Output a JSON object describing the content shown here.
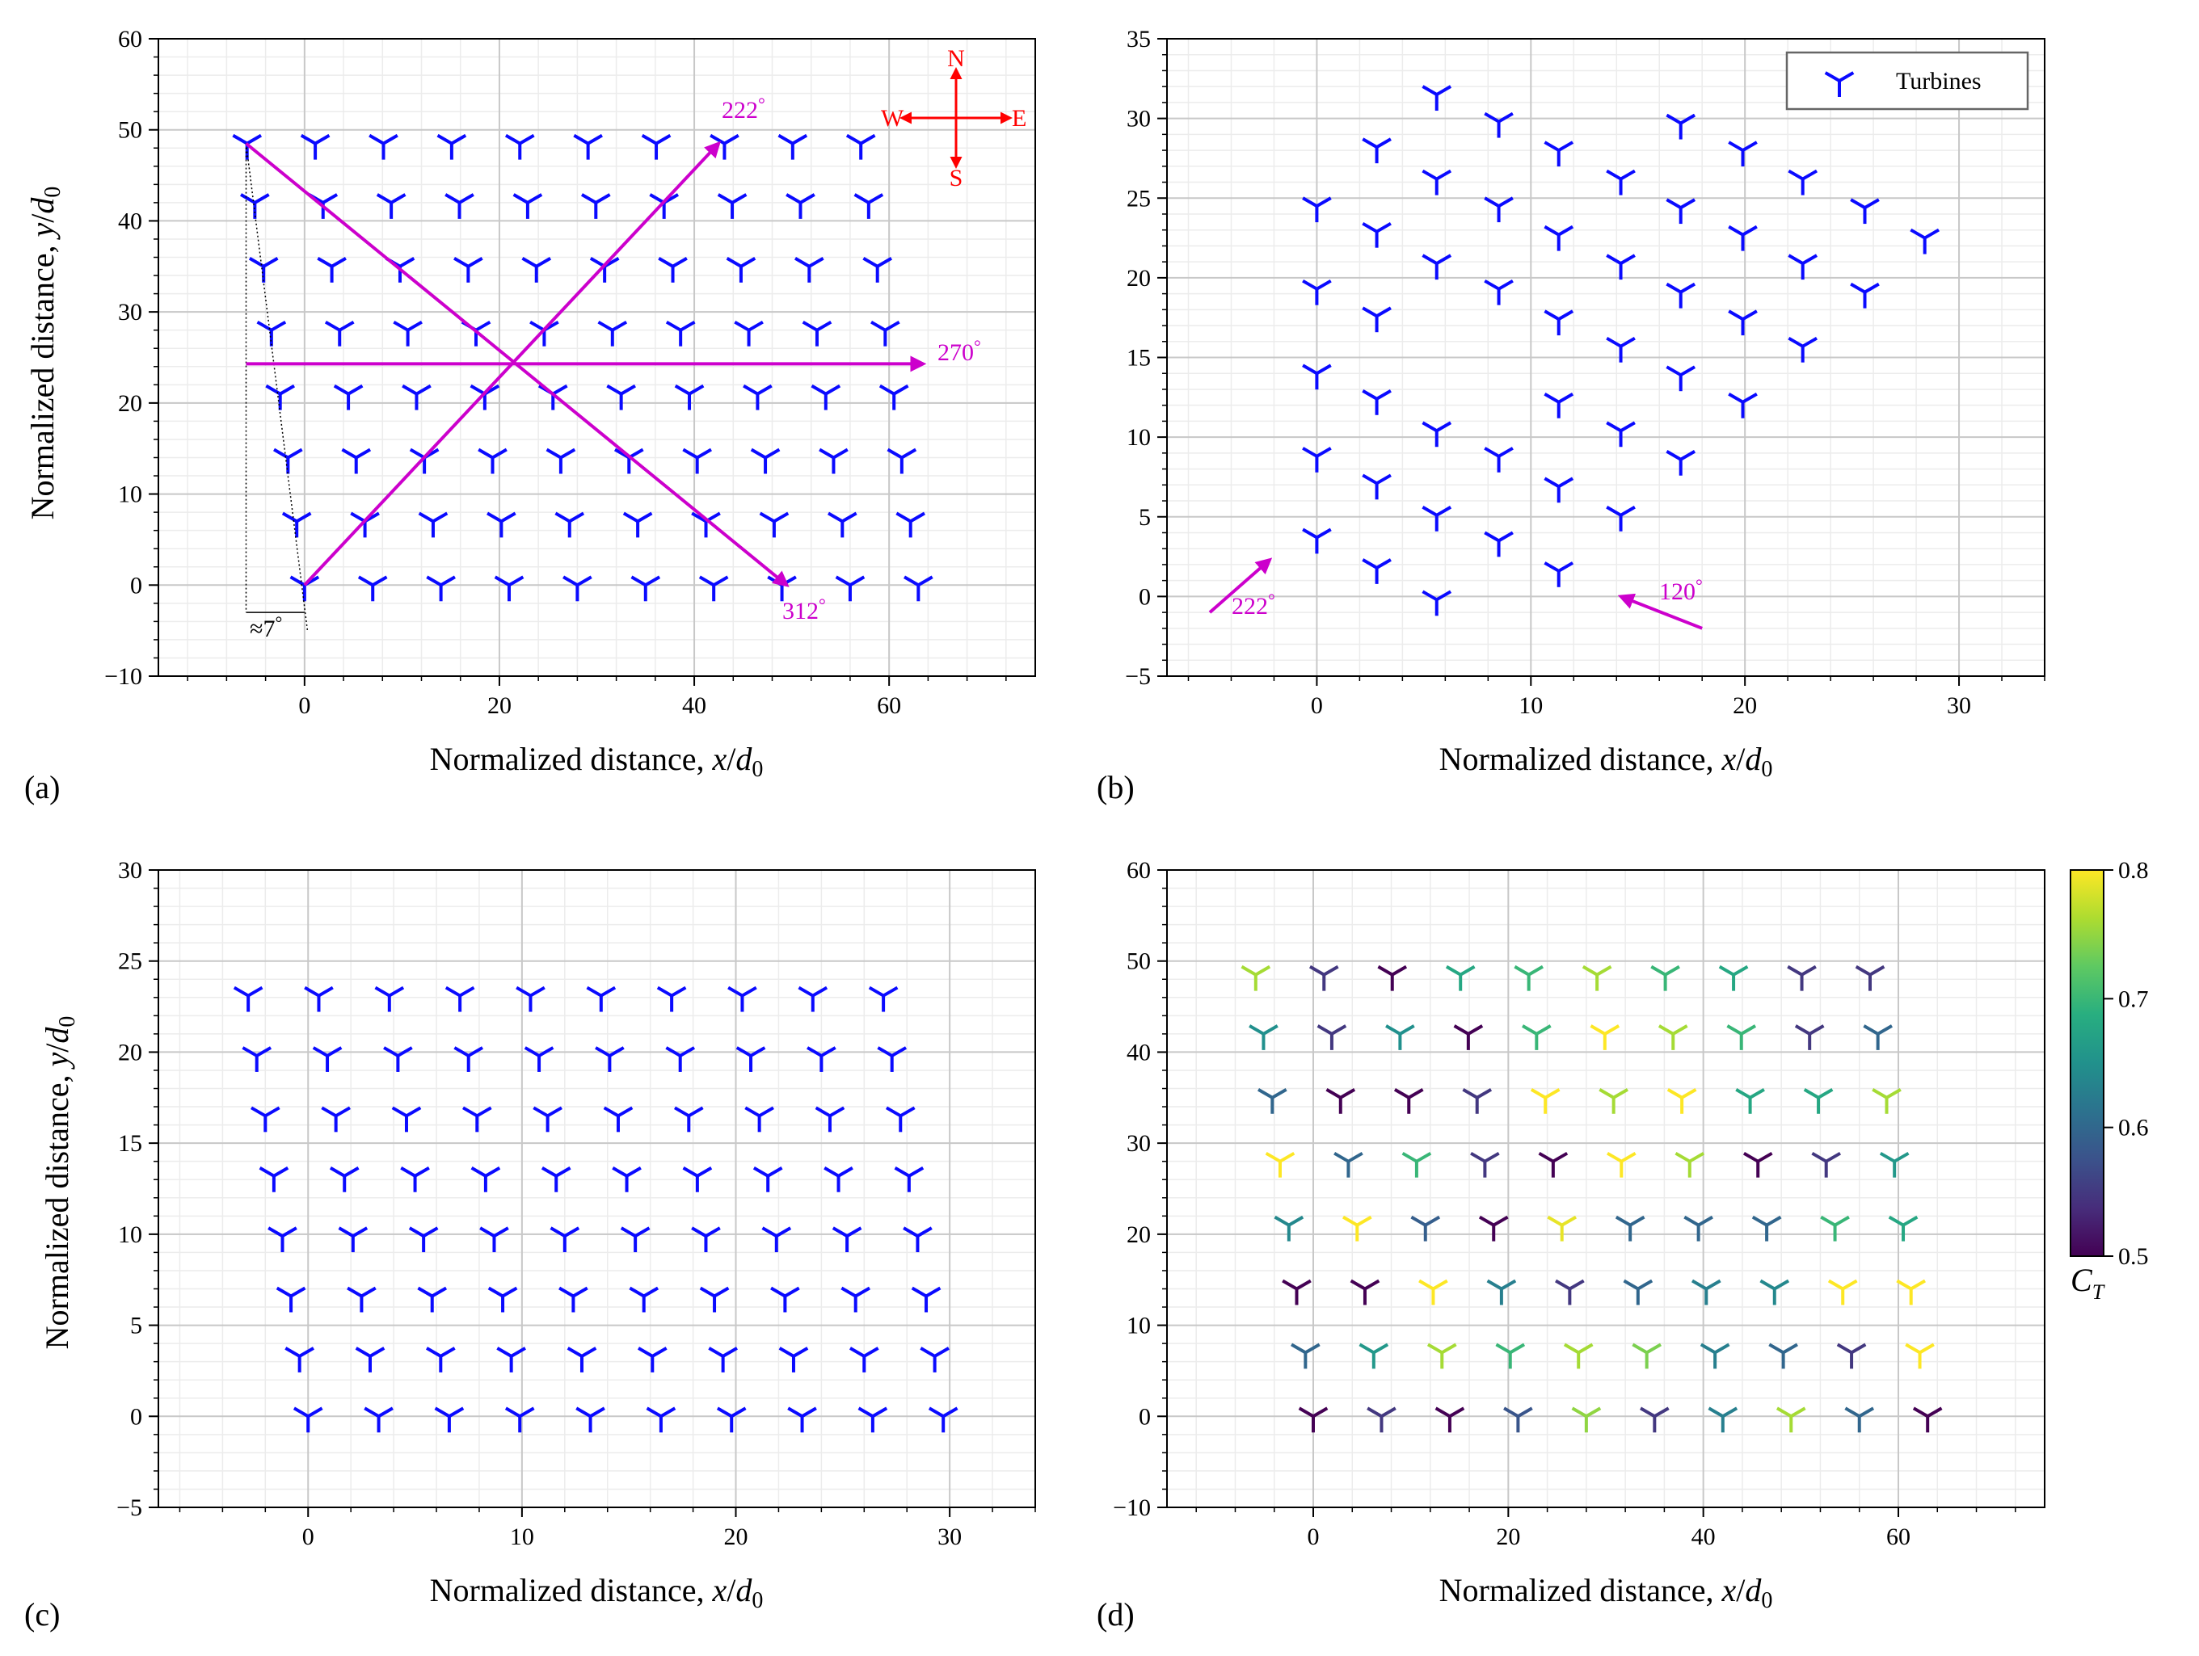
{
  "figure": {
    "xlabel": "Normalized distance, x/d₀",
    "ylabel": "Normalized distance, y/d₀",
    "xlabel_parts": [
      "Normalized distance, ",
      "x",
      "/",
      "d",
      "0"
    ],
    "ylabel_parts": [
      "Normalized distance, ",
      "y",
      "/",
      "d",
      "0"
    ]
  },
  "colors": {
    "turbine": "#0a0aff",
    "arrow": "#cc00cc",
    "compass": "#ff0000",
    "grid_major": "#c8c8c8",
    "grid_minor": "#ececec"
  },
  "panel_a": {
    "label": "(a)",
    "annotations": {
      "dir_222": "222",
      "dir_270": "270",
      "dir_312": "312",
      "deg": "°",
      "angle": "≈7",
      "compass": {
        "N": "N",
        "S": "S",
        "E": "E",
        "W": "W"
      }
    }
  },
  "panel_b": {
    "label": "(b)",
    "legend": "Turbines",
    "annotations": {
      "dir_222": "222",
      "dir_120": "120",
      "deg": "°"
    }
  },
  "panel_c": {
    "label": "(c)"
  },
  "panel_d": {
    "label": "(d)",
    "colorbar": {
      "label_main": "C",
      "label_sub": "T",
      "ticks": [
        "0.5",
        "0.6",
        "0.7",
        "0.8"
      ]
    }
  },
  "chart_data": [
    {
      "panel": "a",
      "type": "scatter",
      "marker": "tri_down",
      "xlabel": "Normalized distance, x/d0",
      "ylabel": "Normalized distance, y/d0",
      "xlim": [
        -15,
        75
      ],
      "ylim": [
        -10,
        60
      ],
      "xticks": [
        0,
        20,
        40,
        60
      ],
      "yticks": [
        -10,
        0,
        10,
        20,
        30,
        40,
        50,
        60
      ],
      "series": [
        {
          "name": "Turbines",
          "rows": [
            {
              "y": 0,
              "x": [
                0,
                7,
                14,
                21,
                28,
                35,
                42,
                49,
                56,
                63
              ]
            },
            {
              "y": 7,
              "x": [
                -0.8,
                6.2,
                13.2,
                20.2,
                27.2,
                34.2,
                41.2,
                48.2,
                55.2,
                62.2
              ]
            },
            {
              "y": 14,
              "x": [
                -1.7,
                5.3,
                12.3,
                19.3,
                26.3,
                33.3,
                40.3,
                47.3,
                54.3,
                61.3
              ]
            },
            {
              "y": 21,
              "x": [
                -2.5,
                4.5,
                11.5,
                18.5,
                25.5,
                32.5,
                39.5,
                46.5,
                53.5,
                60.5
              ]
            },
            {
              "y": 28,
              "x": [
                -3.4,
                3.6,
                10.6,
                17.6,
                24.6,
                31.6,
                38.6,
                45.6,
                52.6,
                59.6
              ]
            },
            {
              "y": 35,
              "x": [
                -4.2,
                2.8,
                9.8,
                16.8,
                23.8,
                30.8,
                37.8,
                44.8,
                51.8,
                58.8
              ]
            },
            {
              "y": 42,
              "x": [
                -5.1,
                1.9,
                8.9,
                15.9,
                22.9,
                29.9,
                36.9,
                43.9,
                50.9,
                57.9
              ]
            },
            {
              "y": 48.5,
              "x": [
                -5.9,
                1.1,
                8.1,
                15.1,
                22.1,
                29.1,
                36.1,
                43.1,
                50.1,
                57.1
              ]
            }
          ]
        }
      ],
      "arrows": [
        {
          "label": "222°",
          "from": [
            0,
            0
          ],
          "to": [
            42.5,
            48.5
          ]
        },
        {
          "label": "270°",
          "from": [
            -6,
            24.3
          ],
          "to": [
            63.5,
            24.3
          ]
        },
        {
          "label": "312°",
          "from": [
            -6,
            48.5
          ],
          "to": [
            49.5,
            0
          ]
        }
      ],
      "angle_annotation": "≈7°",
      "compass": [
        "N",
        "S",
        "E",
        "W"
      ]
    },
    {
      "panel": "b",
      "type": "scatter",
      "marker": "tri_down",
      "xlim": [
        -7,
        34
      ],
      "ylim": [
        -5,
        35
      ],
      "xticks": [
        0,
        10,
        20,
        30
      ],
      "yticks": [
        -5,
        0,
        5,
        10,
        15,
        20,
        25,
        30,
        35
      ],
      "legend": {
        "label": "Turbines",
        "loc": "upper right"
      },
      "series": [
        {
          "name": "Turbines",
          "points": [
            [
              0,
              3.7
            ],
            [
              0,
              8.8
            ],
            [
              0,
              14
            ],
            [
              0,
              19.3
            ],
            [
              0,
              24.5
            ],
            [
              2.8,
              1.8
            ],
            [
              2.8,
              7.1
            ],
            [
              2.8,
              12.4
            ],
            [
              2.8,
              17.6
            ],
            [
              2.8,
              22.9
            ],
            [
              2.8,
              28.2
            ],
            [
              5.6,
              -0.2
            ],
            [
              5.6,
              5.1
            ],
            [
              5.6,
              10.4
            ],
            [
              5.6,
              20.9
            ],
            [
              5.6,
              26.2
            ],
            [
              5.6,
              31.5
            ],
            [
              8.5,
              3.5
            ],
            [
              8.5,
              8.8
            ],
            [
              8.5,
              19.3
            ],
            [
              8.5,
              24.5
            ],
            [
              8.5,
              29.8
            ],
            [
              11.3,
              1.6
            ],
            [
              11.3,
              6.9
            ],
            [
              11.3,
              12.2
            ],
            [
              11.3,
              17.4
            ],
            [
              11.3,
              22.7
            ],
            [
              11.3,
              28
            ],
            [
              14.2,
              5.1
            ],
            [
              14.2,
              10.4
            ],
            [
              14.2,
              15.7
            ],
            [
              14.2,
              20.9
            ],
            [
              14.2,
              26.2
            ],
            [
              17,
              8.6
            ],
            [
              17,
              13.9
            ],
            [
              17,
              19.1
            ],
            [
              17,
              24.4
            ],
            [
              17,
              29.7
            ],
            [
              19.9,
              12.2
            ],
            [
              19.9,
              17.4
            ],
            [
              19.9,
              22.7
            ],
            [
              19.9,
              28
            ],
            [
              22.7,
              15.7
            ],
            [
              22.7,
              20.9
            ],
            [
              22.7,
              26.2
            ],
            [
              25.6,
              19.1
            ],
            [
              25.6,
              24.4
            ],
            [
              28.4,
              22.5
            ]
          ]
        }
      ],
      "arrows": [
        {
          "label": "222°",
          "from": [
            -5,
            -1
          ],
          "to": [
            -2.2,
            2.3
          ]
        },
        {
          "label": "120°",
          "from": [
            18,
            -2
          ],
          "to": [
            14.2,
            0
          ]
        }
      ]
    },
    {
      "panel": "c",
      "type": "scatter",
      "marker": "tri_down",
      "xlim": [
        -7,
        34
      ],
      "ylim": [
        -5,
        30
      ],
      "xticks": [
        0,
        10,
        20,
        30
      ],
      "yticks": [
        -5,
        0,
        5,
        10,
        15,
        20,
        25,
        30
      ],
      "series": [
        {
          "name": "Turbines",
          "rows": [
            {
              "y": 0,
              "x": [
                0,
                3.3,
                6.6,
                9.9,
                13.2,
                16.5,
                19.8,
                23.1,
                26.4,
                29.7
              ]
            },
            {
              "y": 3.3,
              "x": [
                -0.4,
                2.9,
                6.2,
                9.5,
                12.8,
                16.1,
                19.4,
                22.7,
                26,
                29.3
              ]
            },
            {
              "y": 6.6,
              "x": [
                -0.8,
                2.5,
                5.8,
                9.1,
                12.4,
                15.7,
                19,
                22.3,
                25.6,
                28.9
              ]
            },
            {
              "y": 9.9,
              "x": [
                -1.2,
                2.1,
                5.4,
                8.7,
                12,
                15.3,
                18.6,
                21.9,
                25.2,
                28.5
              ]
            },
            {
              "y": 13.2,
              "x": [
                -1.6,
                1.7,
                5,
                8.3,
                11.6,
                14.9,
                18.2,
                21.5,
                24.8,
                28.1
              ]
            },
            {
              "y": 16.5,
              "x": [
                -2,
                1.3,
                4.6,
                7.9,
                11.2,
                14.5,
                17.8,
                21.1,
                24.4,
                27.7
              ]
            },
            {
              "y": 19.8,
              "x": [
                -2.4,
                0.9,
                4.2,
                7.5,
                10.8,
                14.1,
                17.4,
                20.7,
                24,
                27.3
              ]
            },
            {
              "y": 23.1,
              "x": [
                -2.8,
                0.5,
                3.8,
                7.1,
                10.4,
                13.7,
                17,
                20.3,
                23.6,
                26.9
              ]
            }
          ]
        }
      ]
    },
    {
      "panel": "d",
      "type": "scatter",
      "marker": "tri_down",
      "colormap": "viridis",
      "color_label": "C_T",
      "clim": [
        0.5,
        0.8
      ],
      "xlim": [
        -15,
        75
      ],
      "ylim": [
        -10,
        60
      ],
      "xticks": [
        0,
        20,
        40,
        60
      ],
      "yticks": [
        -10,
        0,
        10,
        20,
        30,
        40,
        50,
        60
      ],
      "rows": [
        {
          "y": 0,
          "x": [
            0,
            7,
            14,
            21,
            28,
            35,
            42,
            49,
            56,
            63
          ],
          "ct": [
            0.5,
            0.55,
            0.5,
            0.58,
            0.75,
            0.55,
            0.63,
            0.76,
            0.6,
            0.5
          ]
        },
        {
          "y": 7,
          "x": [
            -0.8,
            6.2,
            13.2,
            20.2,
            27.2,
            34.2,
            41.2,
            48.2,
            55.2,
            62.2
          ],
          "ct": [
            0.6,
            0.66,
            0.76,
            0.7,
            0.76,
            0.74,
            0.63,
            0.6,
            0.55,
            0.8
          ]
        },
        {
          "y": 14,
          "x": [
            -1.7,
            5.3,
            12.3,
            19.3,
            26.3,
            33.3,
            40.3,
            47.3,
            54.3,
            61.3
          ],
          "ct": [
            0.5,
            0.5,
            0.8,
            0.63,
            0.55,
            0.6,
            0.63,
            0.64,
            0.8,
            0.8
          ]
        },
        {
          "y": 21,
          "x": [
            -2.5,
            4.5,
            11.5,
            18.5,
            25.5,
            32.5,
            39.5,
            46.5,
            53.5,
            60.5
          ],
          "ct": [
            0.64,
            0.8,
            0.59,
            0.5,
            0.79,
            0.6,
            0.6,
            0.6,
            0.7,
            0.68
          ]
        },
        {
          "y": 28,
          "x": [
            -3.4,
            3.6,
            10.6,
            17.6,
            24.6,
            31.6,
            38.6,
            45.6,
            52.6,
            59.6
          ],
          "ct": [
            0.8,
            0.6,
            0.7,
            0.55,
            0.5,
            0.8,
            0.76,
            0.5,
            0.55,
            0.66
          ]
        },
        {
          "y": 35,
          "x": [
            -4.2,
            2.8,
            9.8,
            16.8,
            23.8,
            30.8,
            37.8,
            44.8,
            51.8,
            58.8
          ],
          "ct": [
            0.6,
            0.5,
            0.5,
            0.55,
            0.8,
            0.76,
            0.8,
            0.68,
            0.68,
            0.76
          ]
        },
        {
          "y": 42,
          "x": [
            -5.1,
            1.9,
            8.9,
            15.9,
            22.9,
            29.9,
            36.9,
            43.9,
            50.9,
            57.9
          ],
          "ct": [
            0.65,
            0.55,
            0.65,
            0.5,
            0.7,
            0.8,
            0.76,
            0.7,
            0.55,
            0.6
          ]
        },
        {
          "y": 48.5,
          "x": [
            -5.9,
            1.1,
            8.1,
            15.1,
            22.1,
            29.1,
            36.1,
            43.1,
            50.1,
            57.1
          ],
          "ct": [
            0.76,
            0.55,
            0.5,
            0.68,
            0.7,
            0.76,
            0.7,
            0.68,
            0.55,
            0.55
          ]
        }
      ]
    }
  ]
}
